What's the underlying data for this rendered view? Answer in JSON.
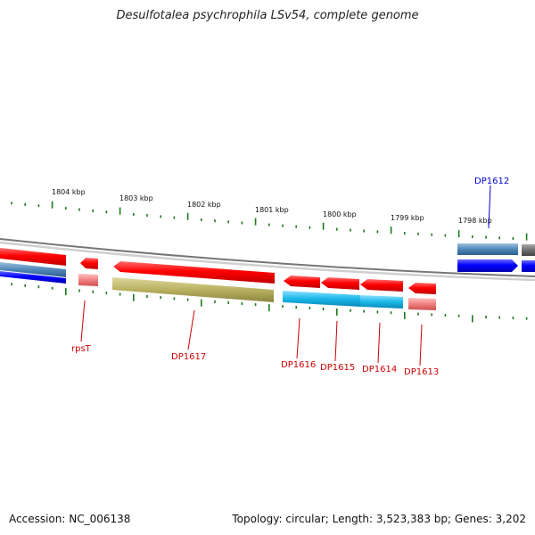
{
  "title": "Desulfotalea psychrophila LSv54, complete genome",
  "accession": "Accession: NC_006138",
  "summary": "Topology: circular; Length: 3,523,383 bp; Genes: 3,202",
  "scale_labels": [
    "1804 kbp",
    "1803 kbp",
    "1802 kbp",
    "1801 kbp",
    "1800 kbp",
    "1799 kbp",
    "1798 kbp"
  ],
  "gene_labels": {
    "rpsT": "rpsT",
    "DP1617": "DP1617",
    "DP1616": "DP1616",
    "DP1615": "DP1615",
    "DP1614": "DP1614",
    "DP1613": "DP1613",
    "DP1612": "DP1612"
  },
  "colors": {
    "forward_cds": "#ff0000",
    "reverse_cds": "#ff0000",
    "forward_gene": "#4f87b8",
    "reverse_gene": "#0000ff",
    "cds_gray": "#6e6e6e",
    "olive_feature": "#b8b060",
    "cyan_feature": "#1ab8e8",
    "pink_feature": "#f08080",
    "backbone": "#8a8a8a",
    "tick": "#1a7a1a",
    "label_red": "#cc0000",
    "label_blue": "#0000cc"
  }
}
